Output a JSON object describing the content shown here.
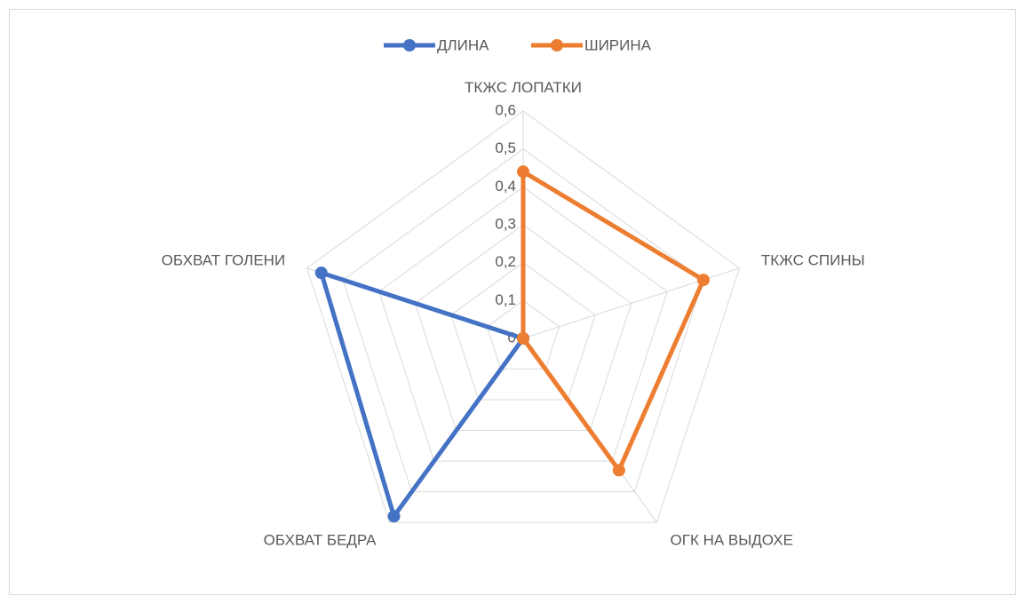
{
  "chart_data": {
    "type": "radar",
    "categories": [
      "ТКЖС ЛОПАТКИ",
      "ТКЖС СПИНЫ",
      "ОГК НА ВЫДОХЕ",
      "ОБХВАТ БЕДРА",
      "ОБХВАТ ГОЛЕНИ"
    ],
    "series": [
      {
        "name": "ДЛИНА",
        "color": "#4472c4",
        "values": [
          0,
          0,
          0,
          0.58,
          0.56
        ]
      },
      {
        "name": "ШИРИНА",
        "color": "#ed7d31",
        "values": [
          0.44,
          0.5,
          0.43,
          0,
          0
        ]
      }
    ],
    "ylim": [
      0,
      0.6
    ],
    "yticks": [
      0,
      {
        "value": 0.1,
        "label": "0,1"
      },
      {
        "value": 0.2,
        "label": "0,2"
      },
      {
        "value": 0.3,
        "label": "0,3"
      },
      {
        "value": 0.4,
        "label": "0,4"
      },
      {
        "value": 0.5,
        "label": "0,5"
      },
      {
        "value": 0.6,
        "label": "0,6"
      }
    ],
    "grid": true,
    "legend": "top"
  }
}
